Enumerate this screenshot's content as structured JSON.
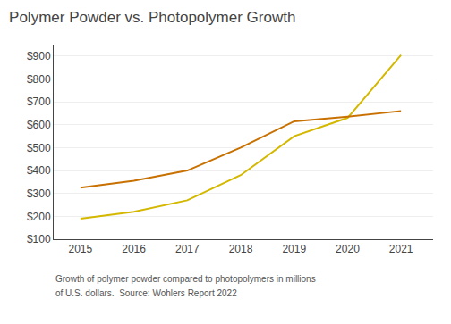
{
  "chart_data": {
    "type": "line",
    "title": "Polymer Powder vs. Photopolymer Growth",
    "x": [
      2015,
      2016,
      2017,
      2018,
      2019,
      2020,
      2021
    ],
    "series": [
      {
        "color": "#d4b800",
        "values": [
          190,
          220,
          270,
          380,
          550,
          630,
          905
        ]
      },
      {
        "color": "#c87000",
        "values": [
          325,
          355,
          400,
          500,
          615,
          635,
          660
        ]
      }
    ],
    "xlim": [
      2014.5,
      2021.6
    ],
    "xticks": [
      2015,
      2016,
      2017,
      2018,
      2019,
      2020,
      2021
    ],
    "ylim": [
      100,
      950
    ],
    "yticks": [
      {
        "value": 100,
        "label": "$100"
      },
      {
        "value": 200,
        "label": "$200"
      },
      {
        "value": 300,
        "label": "$300"
      },
      {
        "value": 400,
        "label": "$400"
      },
      {
        "value": 500,
        "label": "$500"
      },
      {
        "value": 600,
        "label": "$600"
      },
      {
        "value": 700,
        "label": "$700"
      },
      {
        "value": 800,
        "label": "$800"
      },
      {
        "value": 900,
        "label": "$900"
      }
    ],
    "grid": "y",
    "annotations": [
      "Growth of polymer powder compared to photopolymers in millions",
      "of U.S. dollars.  Source: Wohlers Report 2022"
    ]
  }
}
